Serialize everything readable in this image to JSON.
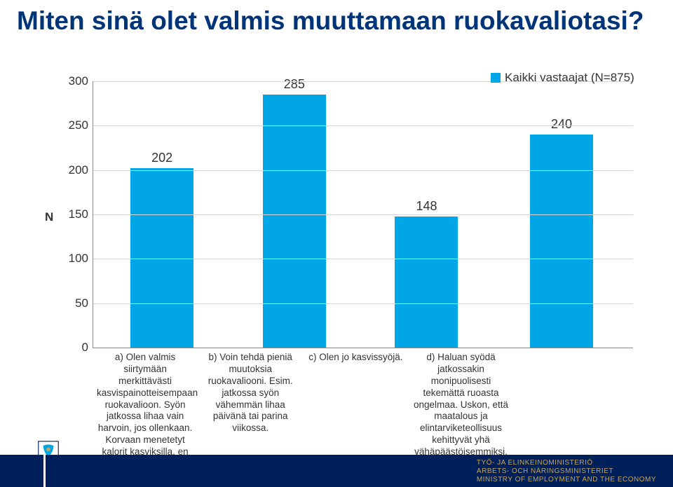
{
  "title": "Miten sinä olet valmis muuttamaan ruokavaliotasi?",
  "chart": {
    "type": "bar",
    "ylabel": "N",
    "ylim": [
      0,
      300
    ],
    "ytick_step": 50,
    "bar_color": "#00a6e5",
    "grid_color": "#d5d5d5",
    "axis_color": "#888888",
    "background_color": "#ffffff",
    "value_fontsize": 18,
    "label_fontsize": 13.5,
    "legend": "Kaikki vastaajat (N=875)",
    "categories": [
      "a) Olen valmis siirtymään merkittävästi kasvispainotteisempaan ruokavalioon. Syön jatkossa lihaa vain harvoin, jos ollenkaan. Korvaan menetetyt kalorit kasviksilla, en maitotuotteilla.",
      "b) Voin tehdä pieniä muutoksia ruokavaliooni. Esim. jatkossa syön vähemmän lihaa päivänä tai parina viikossa.",
      "c) Olen jo kasvissyöjä.",
      "d) Haluan syödä jatkossakin monipuolisesti tekemättä ruoasta ongelmaa. Uskon, että maatalous ja elintarviketeollisuus kehittyvät yhä vähäpäästöisemmiksi."
    ],
    "values": [
      202,
      285,
      148,
      240
    ],
    "bar_positions_pct": [
      3,
      27.5,
      52,
      77
    ]
  },
  "footer": {
    "bar_color": "#00205b",
    "text_color": "#c5a55b",
    "line1": "TYÖ- JA ELINKEINOMINISTERIÖ",
    "line2": "ARBETS- OCH NÄRINGSMINISTERIET",
    "line3": "MINISTRY OF EMPLOYMENT AND THE ECONOMY"
  }
}
